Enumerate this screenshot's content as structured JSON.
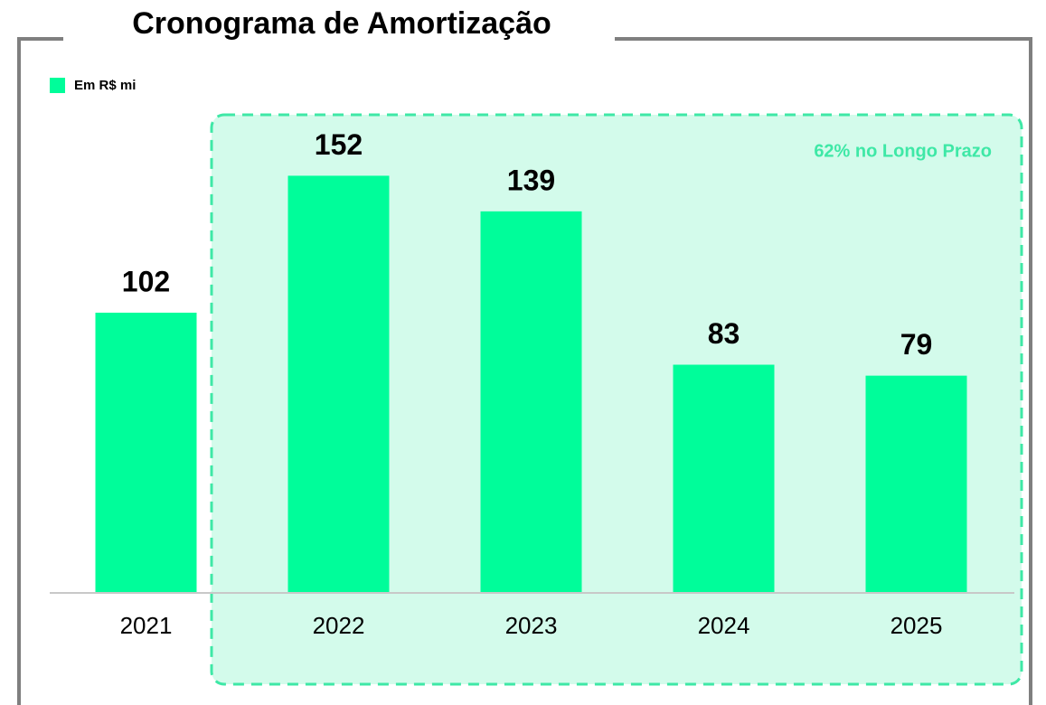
{
  "chart_data": {
    "type": "bar",
    "title": "Cronograma de Amortização",
    "legend_label": "Em R$ mi",
    "annotation": "62% no Longo Prazo",
    "categories": [
      "2021",
      "2022",
      "2023",
      "2024",
      "2025"
    ],
    "values": [
      102,
      152,
      139,
      83,
      79
    ],
    "color": "#00fd9a"
  }
}
